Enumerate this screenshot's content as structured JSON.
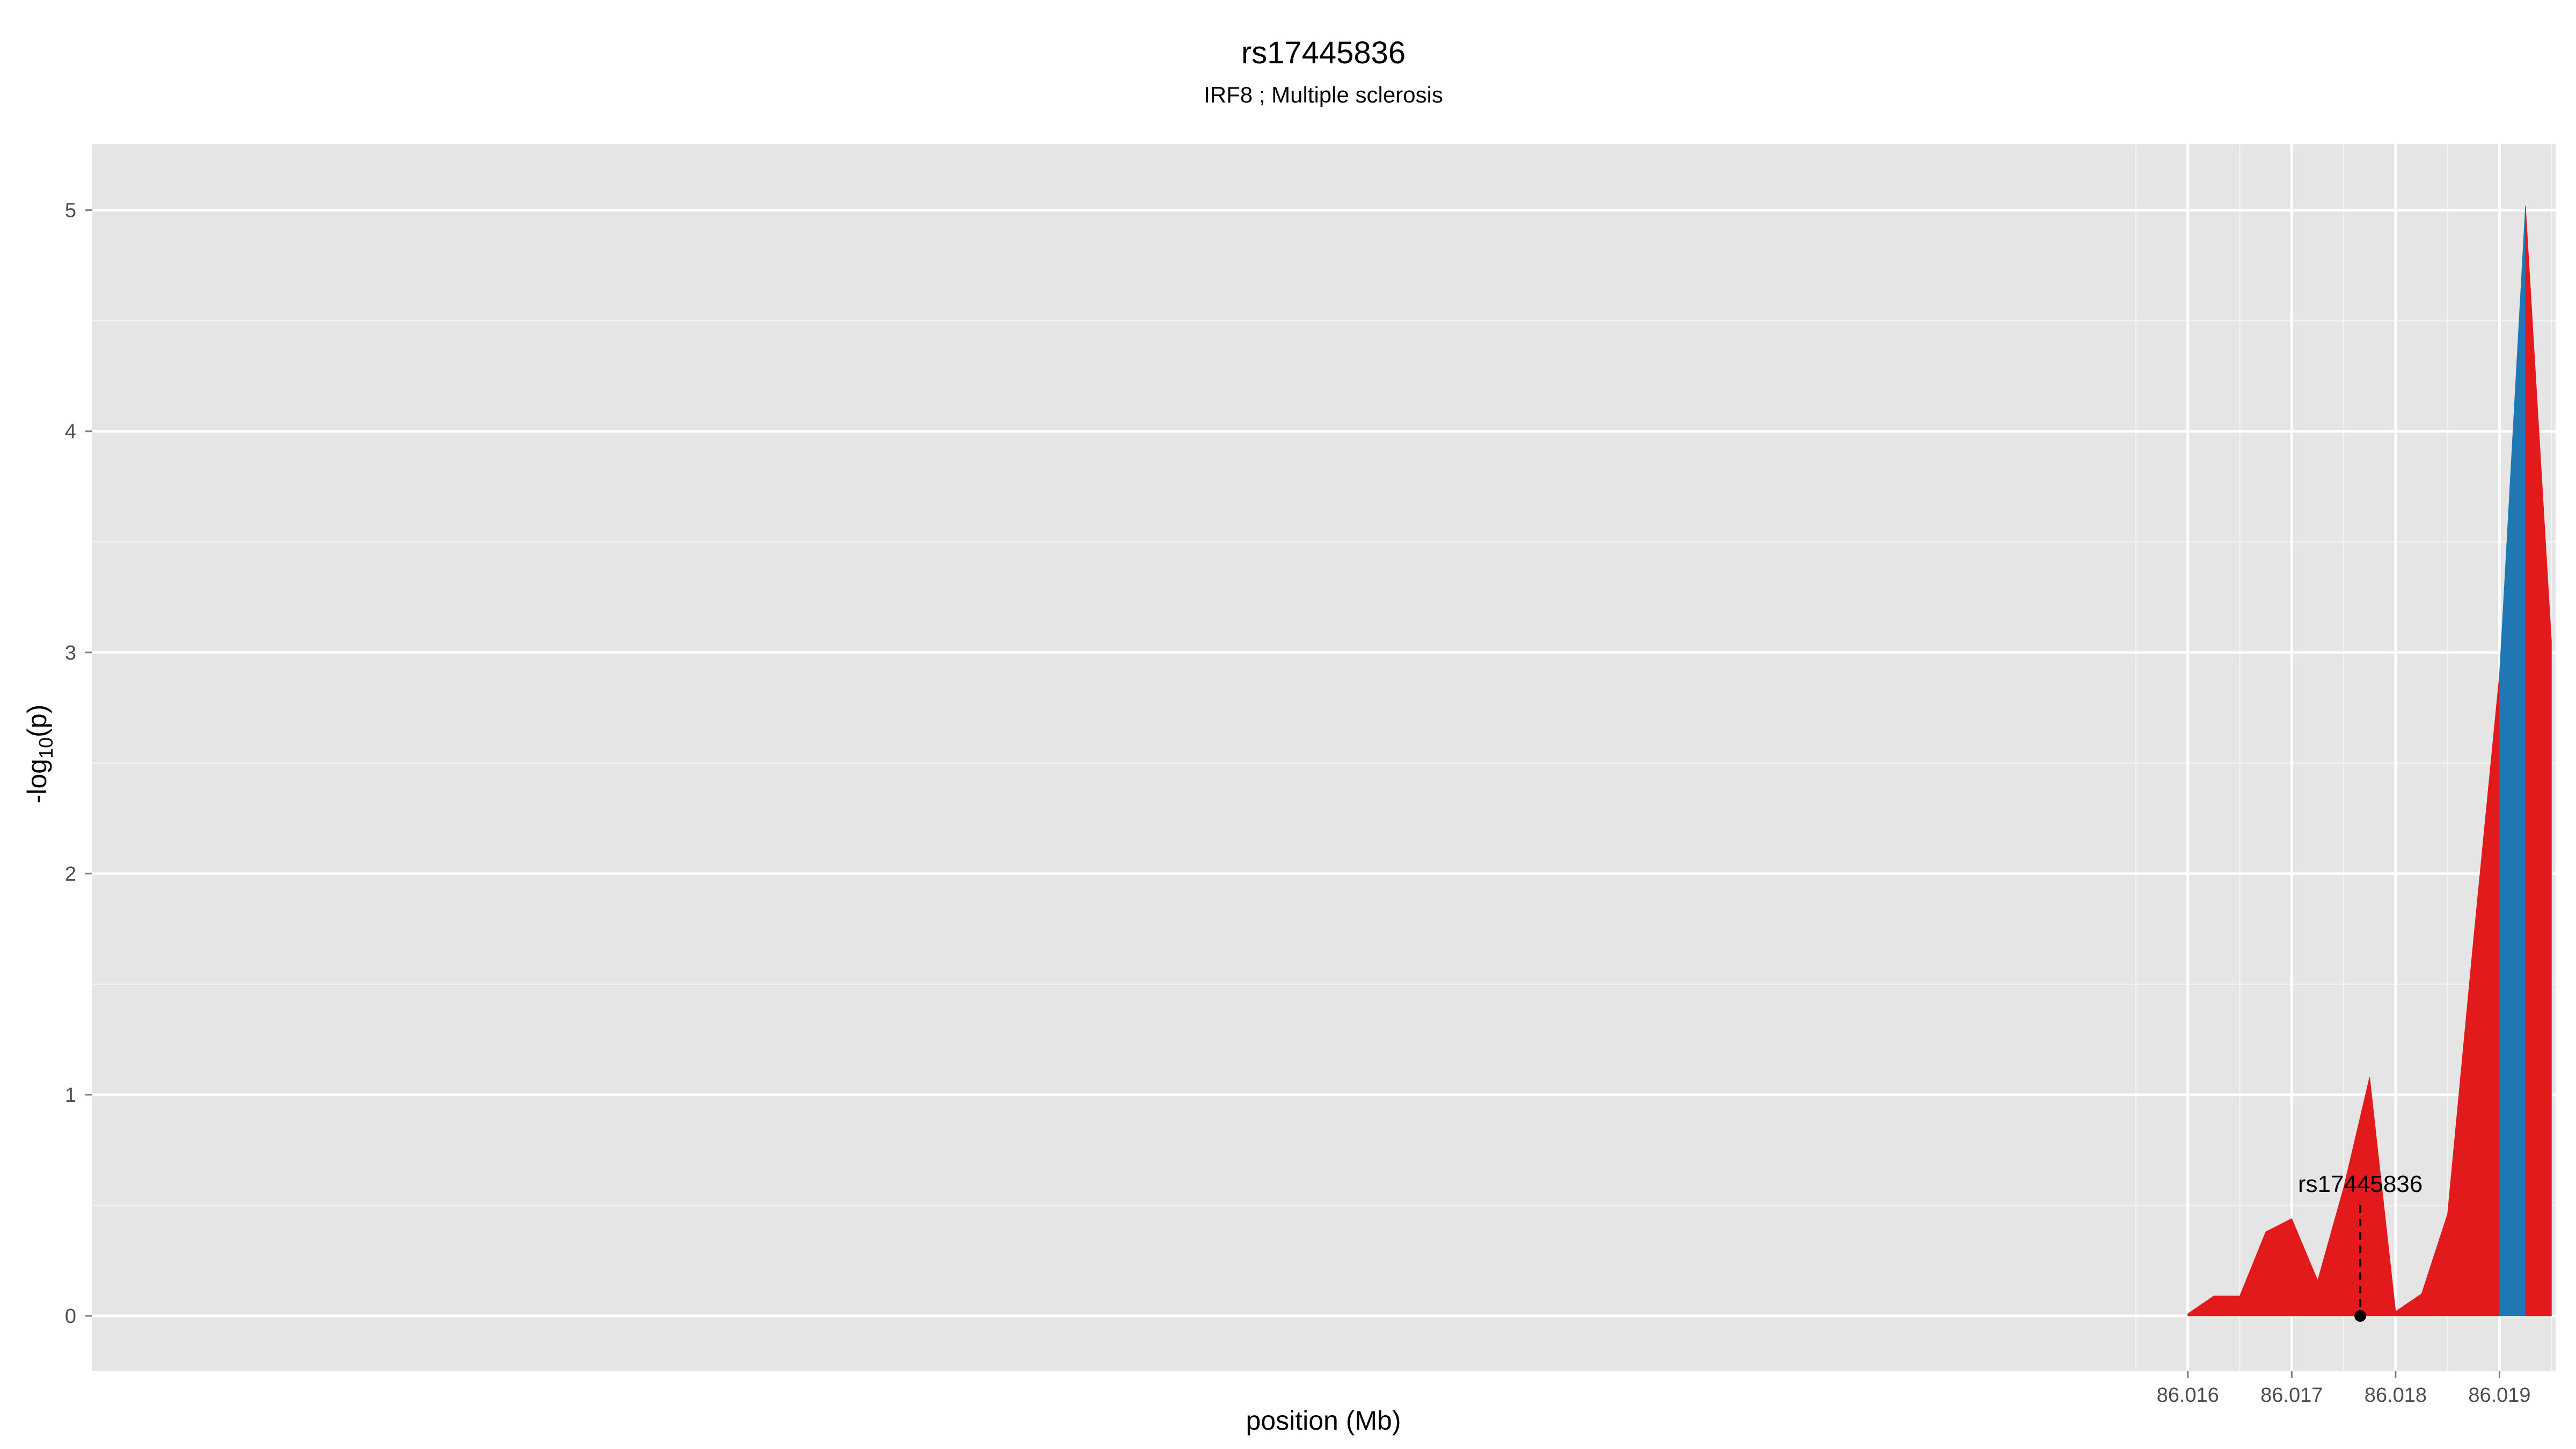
{
  "chart_data": {
    "type": "area",
    "title": "rs17445836",
    "subtitle": "IRF8 ; Multiple sclerosis",
    "xlabel": "position (Mb)",
    "ylabel": "-log10(p)",
    "xlim": [
      85.99583,
      86.01954
    ],
    "ylim": [
      -0.25,
      5.3
    ],
    "x_ticks": [
      86.016,
      86.017,
      86.018,
      86.019
    ],
    "x_tick_labels": [
      "86.016",
      "86.017",
      "86.018",
      "86.019"
    ],
    "y_ticks": [
      0,
      1,
      2,
      3,
      4,
      5
    ],
    "y_tick_labels": [
      "0",
      "1",
      "2",
      "3",
      "4",
      "5"
    ],
    "grid": true,
    "background": "#e5e5e5",
    "series": [
      {
        "color": "#e31a1c",
        "x": [
          86.016,
          86.01625,
          86.0165,
          86.01675,
          86.017,
          86.01725,
          86.0175,
          86.01775,
          86.018,
          86.01825,
          86.0185,
          86.01875,
          86.019
        ],
        "y": [
          0.01,
          0.09,
          0.09,
          0.38,
          0.44,
          0.16,
          0.58,
          1.08,
          0.02,
          0.1,
          0.46,
          1.7,
          2.9
        ]
      },
      {
        "color": "#1f78b4",
        "x": [
          86.019,
          86.01925
        ],
        "y": [
          2.9,
          5.02
        ]
      },
      {
        "color": "#e31a1c",
        "x": [
          86.01925,
          86.0195
        ],
        "y": [
          5.02,
          3.05
        ]
      }
    ],
    "annotations": [
      {
        "label": "rs17445836",
        "x": 86.01766,
        "y": 0,
        "label_y": 0.56,
        "line_top_y": 0.5
      }
    ]
  }
}
